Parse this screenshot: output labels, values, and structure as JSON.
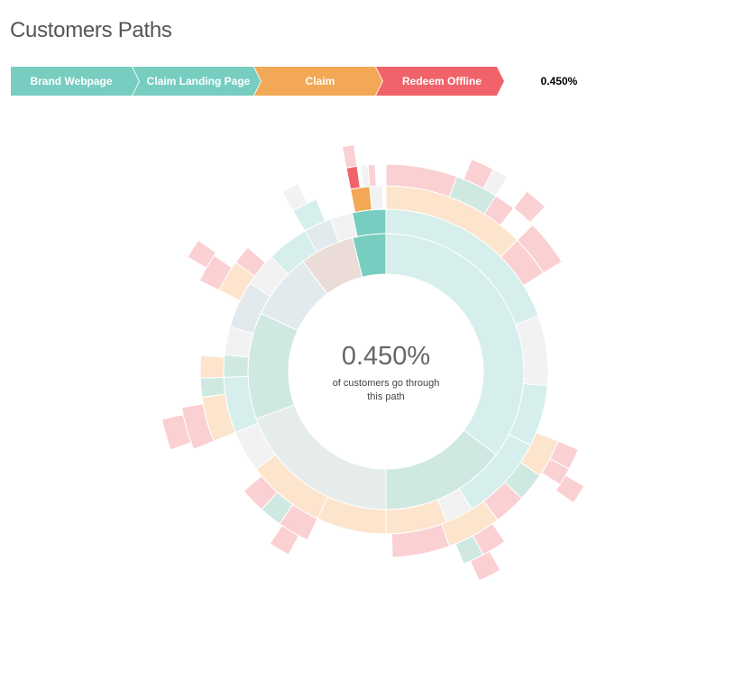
{
  "page": {
    "title": "Customers Paths"
  },
  "breadcrumb": {
    "steps": [
      {
        "label": "Brand Webpage",
        "color": "#76cdc0"
      },
      {
        "label": "Claim Landing Page",
        "color": "#76cdc0"
      },
      {
        "label": "Claim",
        "color": "#f2a854"
      },
      {
        "label": "Redeem Offline",
        "color": "#f0636a"
      }
    ],
    "percentage": "0.450%"
  },
  "center": {
    "percentage": "0.450%",
    "caption": "of customers go through this path"
  },
  "colors": {
    "brand_webpage": "#76cdc0",
    "claim_landing_page": "#76cdc0",
    "claim": "#f2a854",
    "redeem_offline": "#f0636a",
    "other": "#e8e8e8",
    "background": "#ffffff",
    "title_text": "#555555"
  },
  "chart_data": {
    "type": "sunburst",
    "title": "Customers Paths",
    "highlighted_path": [
      "Brand Webpage",
      "Claim Landing Page",
      "Claim",
      "Redeem Offline"
    ],
    "highlighted_value": 0.45,
    "rings": 5
  }
}
